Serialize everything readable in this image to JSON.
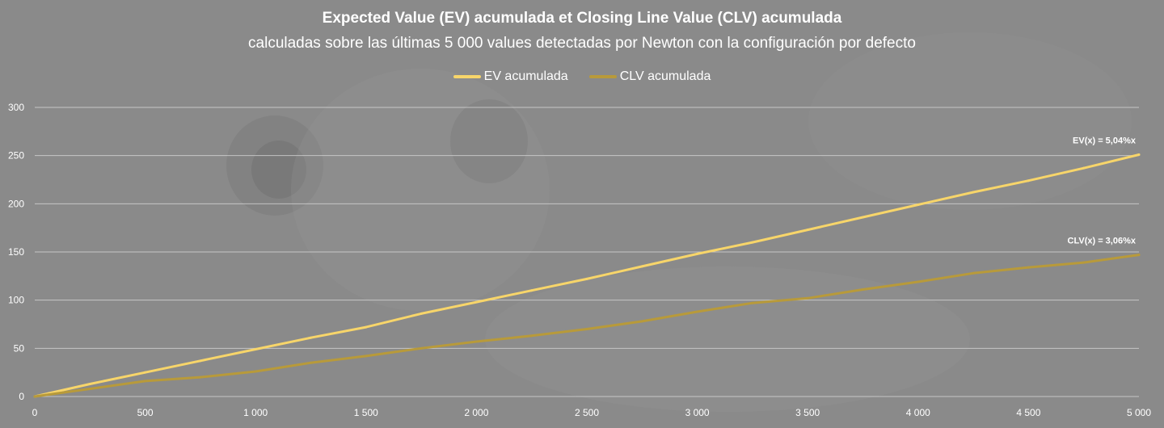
{
  "chart_data": {
    "type": "line",
    "title": "Expected Value (EV) acumulada et Closing Line Value (CLV) acumulada",
    "subtitle": "calculadas sobre las últimas 5 000 values detectadas por Newton con la configuración por defecto",
    "xlim": [
      0,
      5000
    ],
    "ylim": [
      0,
      300
    ],
    "x_ticks": [
      0,
      500,
      1000,
      1500,
      2000,
      2500,
      3000,
      3500,
      4000,
      4500,
      5000
    ],
    "x_tick_labels": [
      "0",
      "500",
      "1 000",
      "1 500",
      "2 000",
      "2 500",
      "3 000",
      "3 500",
      "4 000",
      "4 500",
      "5 000"
    ],
    "y_ticks": [
      0,
      50,
      100,
      150,
      200,
      250,
      300
    ],
    "y_tick_labels": [
      "0",
      "50",
      "100",
      "150",
      "200",
      "250",
      "300"
    ],
    "grid": true,
    "legend_position": "top-center",
    "series": [
      {
        "name": "EV acumulada",
        "color": "#f7d56a",
        "x": [
          0,
          250,
          500,
          750,
          1000,
          1250,
          1500,
          1750,
          2000,
          2250,
          2500,
          2750,
          3000,
          3250,
          3500,
          3750,
          4000,
          4250,
          4500,
          4750,
          5000
        ],
        "y": [
          0,
          13,
          25,
          37,
          49,
          61,
          72,
          86,
          98,
          110,
          122,
          135,
          148,
          160,
          173,
          186,
          199,
          212,
          224,
          237,
          251
        ]
      },
      {
        "name": "CLV acumulada",
        "color": "#b89a3a",
        "x": [
          0,
          250,
          500,
          750,
          1000,
          1250,
          1500,
          1750,
          2000,
          2250,
          2500,
          2750,
          3000,
          3250,
          3500,
          3750,
          4000,
          4250,
          4500,
          4750,
          5000
        ],
        "y": [
          0,
          8,
          16,
          20,
          26,
          35,
          42,
          50,
          57,
          63,
          70,
          78,
          88,
          97,
          102,
          111,
          119,
          128,
          134,
          139,
          147
        ]
      }
    ],
    "annotations": [
      {
        "text": "EV(x) = 5,04%x",
        "series": 0
      },
      {
        "text": "CLV(x) = 3,06%x",
        "series": 1
      }
    ]
  }
}
